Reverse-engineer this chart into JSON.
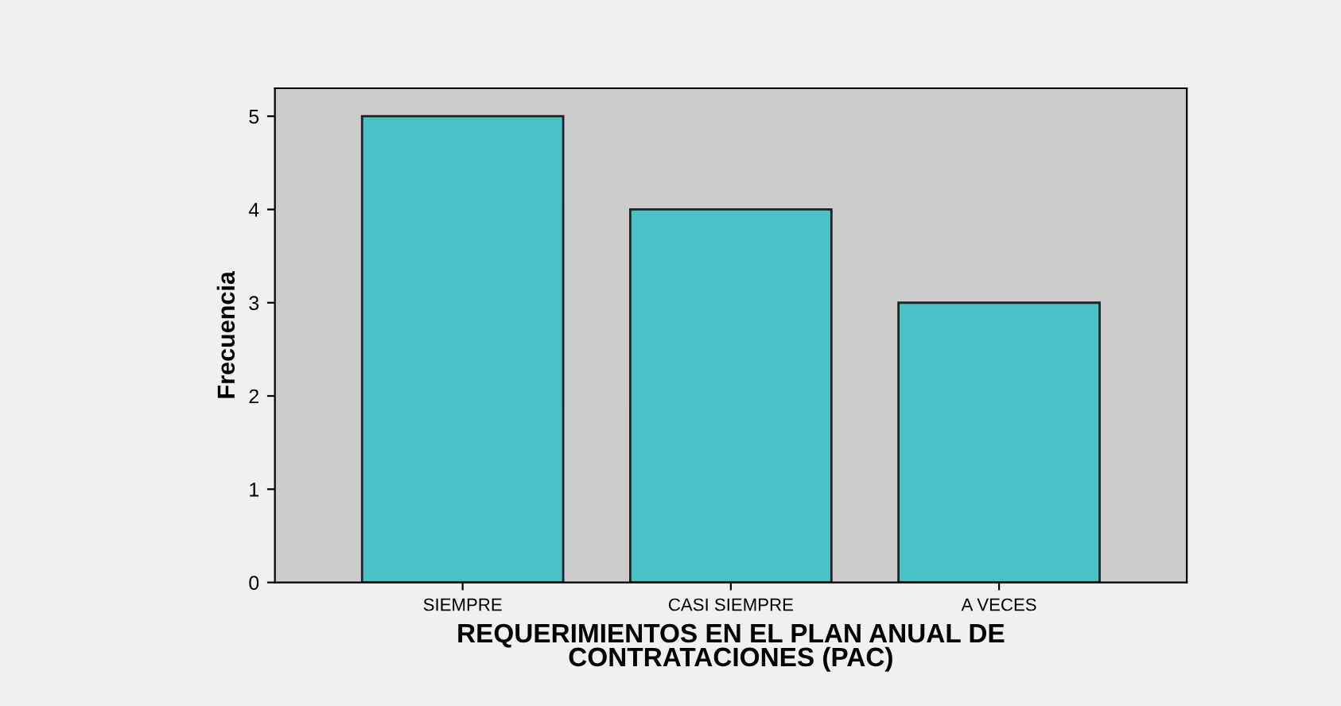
{
  "chart_data": {
    "type": "bar",
    "xlabel": "REQUERIMIENTOS EN EL PLAN ANUAL DE\nCONTRATACIONES (PAC)",
    "ylabel": "Frecuencia",
    "categories": [
      "SIEMPRE",
      "CASI SIEMPRE",
      "A VECES"
    ],
    "values": [
      5,
      4,
      3
    ],
    "color": "#48c2c5",
    "ylim": [
      0,
      5.3
    ],
    "yticks": [
      0,
      1,
      2,
      3,
      4,
      5
    ],
    "grid": false
  }
}
